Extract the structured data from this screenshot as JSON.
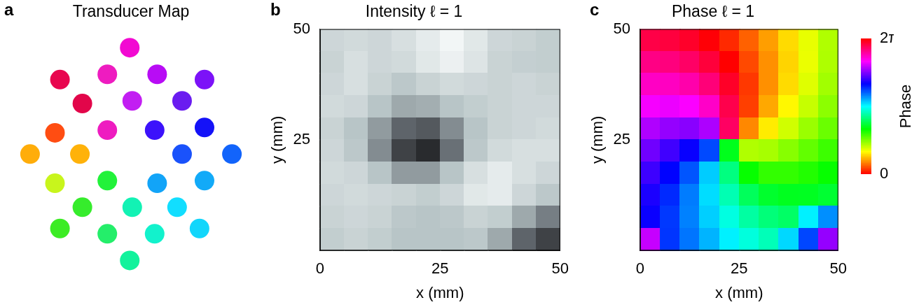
{
  "chart_data": [
    {
      "panel": "a",
      "type": "scatter",
      "title": "Transducer Map",
      "tick_labels": false,
      "grid": false,
      "marker": "circle",
      "x": [
        0,
        -2.8,
        -0.9,
        1.1,
        3.0,
        -1.9,
        0.1,
        2.1,
        -3.0,
        -0.9,
        1.0,
        3.0,
        -4.0,
        -2.0,
        2.1,
        4.1,
        -3.0,
        -0.9,
        1.1,
        3.0,
        -1.9,
        0.1,
        1.9,
        -2.8,
        -0.9,
        1.0,
        2.8,
        0
      ],
      "y": [
        4.0,
        2.8,
        3.0,
        3.0,
        2.8,
        1.9,
        2.0,
        2.0,
        0.8,
        0.9,
        0.9,
        1.0,
        0,
        0,
        0,
        0,
        -1.1,
        -1.0,
        -1.1,
        -1.0,
        -2.0,
        -2.0,
        -2.0,
        -2.8,
        -3.0,
        -3.0,
        -2.8,
        -4.0
      ],
      "colors": [
        "#f20ad2",
        "#e8064f",
        "#ee1cc0",
        "#b80cf5",
        "#7c12f8",
        "#e2064a",
        "#c21ef2",
        "#6a1cf0",
        "#ff4d12",
        "#ee1cc0",
        "#3c12fb",
        "#1412f8",
        "#ffad0a",
        "#ffb20a",
        "#1a52fb",
        "#1264fb",
        "#c8f51c",
        "#22f23a",
        "#12a4f8",
        "#12aaf8",
        "#36ec2c",
        "#12f2b4",
        "#12deff",
        "#3cec24",
        "#24ee6a",
        "#12f2cc",
        "#12d6fb",
        "#12f29c"
      ]
    },
    {
      "panel": "b",
      "type": "heatmap",
      "title": "Intensity ℓ = 1",
      "x_label": "x (mm)",
      "y_label": "y (mm)",
      "grid": false,
      "xlim": [
        0,
        50
      ],
      "ylim": [
        0,
        50
      ],
      "xticks": [
        0,
        25,
        50
      ],
      "yticks": [
        25,
        50
      ],
      "x": [
        2.5,
        7.5,
        12.5,
        17.5,
        22.5,
        27.5,
        32.5,
        37.5,
        42.5,
        47.5
      ],
      "y": [
        47.5,
        42.5,
        37.5,
        32.5,
        27.5,
        22.5,
        17.5,
        12.5,
        7.5,
        2.5
      ],
      "zlim": [
        0,
        1
      ],
      "z": [
        [
          0.8,
          0.82,
          0.8,
          0.85,
          0.92,
          0.98,
          0.9,
          0.8,
          0.78,
          0.75
        ],
        [
          0.78,
          0.85,
          0.8,
          0.82,
          0.9,
          0.95,
          0.88,
          0.78,
          0.76,
          0.75
        ],
        [
          0.8,
          0.85,
          0.78,
          0.72,
          0.78,
          0.82,
          0.8,
          0.78,
          0.8,
          0.78
        ],
        [
          0.82,
          0.8,
          0.7,
          0.6,
          0.62,
          0.7,
          0.75,
          0.78,
          0.8,
          0.8
        ],
        [
          0.78,
          0.7,
          0.55,
          0.35,
          0.3,
          0.5,
          0.7,
          0.78,
          0.8,
          0.82
        ],
        [
          0.8,
          0.72,
          0.5,
          0.2,
          0.1,
          0.4,
          0.72,
          0.82,
          0.85,
          0.85
        ],
        [
          0.82,
          0.8,
          0.7,
          0.55,
          0.55,
          0.7,
          0.85,
          0.92,
          0.85,
          0.8
        ],
        [
          0.8,
          0.82,
          0.8,
          0.78,
          0.75,
          0.8,
          0.9,
          0.92,
          0.8,
          0.72
        ],
        [
          0.78,
          0.8,
          0.78,
          0.72,
          0.7,
          0.72,
          0.78,
          0.75,
          0.6,
          0.45
        ],
        [
          0.75,
          0.78,
          0.75,
          0.7,
          0.7,
          0.7,
          0.72,
          0.6,
          0.35,
          0.2
        ]
      ]
    },
    {
      "panel": "c",
      "type": "heatmap",
      "title": "Phase ℓ = 1",
      "x_label": "x (mm)",
      "y_label": "y (mm)",
      "grid": false,
      "xlim": [
        0,
        50
      ],
      "ylim": [
        0,
        50
      ],
      "xticks": [
        0,
        25,
        50
      ],
      "yticks": [
        25,
        50
      ],
      "x": [
        2.5,
        7.5,
        12.5,
        17.5,
        22.5,
        27.5,
        32.5,
        37.5,
        42.5,
        47.5
      ],
      "y": [
        47.5,
        42.5,
        37.5,
        32.5,
        27.5,
        22.5,
        17.5,
        12.5,
        7.5,
        2.5
      ],
      "z": [
        [
          5.99,
          6.03,
          6.11,
          6.26,
          0.17,
          0.4,
          0.65,
          0.9,
          1.14,
          1.37
        ],
        [
          5.74,
          5.77,
          5.87,
          6.04,
          0.0,
          0.3,
          0.59,
          0.87,
          1.13,
          1.38
        ],
        [
          5.48,
          5.49,
          5.58,
          5.79,
          6.12,
          0.23,
          0.59,
          0.9,
          1.18,
          1.43
        ],
        [
          5.2,
          5.16,
          5.22,
          5.46,
          5.97,
          0.26,
          0.69,
          1.02,
          1.28,
          1.52
        ],
        [
          4.91,
          4.8,
          4.75,
          4.9,
          5.88,
          0.56,
          0.97,
          1.24,
          1.46,
          1.66
        ],
        [
          4.65,
          4.45,
          4.22,
          3.89,
          2.21,
          1.37,
          1.41,
          1.54,
          1.69,
          1.85
        ],
        [
          4.44,
          4.18,
          3.84,
          3.35,
          2.62,
          2.07,
          1.89,
          1.89,
          1.96,
          2.07
        ],
        [
          4.3,
          4.02,
          3.68,
          3.28,
          2.83,
          2.47,
          2.28,
          2.22,
          2.23,
          2.3
        ],
        [
          4.23,
          3.96,
          3.66,
          3.34,
          3.02,
          2.76,
          2.59,
          2.51,
          3.2,
          3.6
        ],
        [
          5.0,
          3.97,
          3.71,
          3.45,
          3.2,
          3.0,
          2.85,
          3.3,
          3.9,
          4.8
        ]
      ],
      "colorbar": {
        "label": "Phase",
        "range": [
          0,
          6.283185
        ],
        "ticks": [
          0,
          {
            "value": 6.283185,
            "label": "2π"
          }
        ]
      }
    }
  ]
}
